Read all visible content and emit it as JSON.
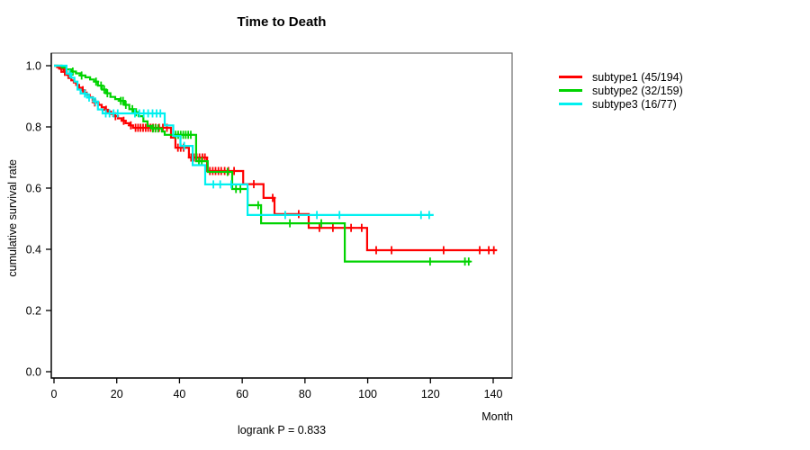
{
  "title": "Time to Death",
  "annotation": "logrank P = 0.833",
  "x_axis": {
    "label": "Month"
  },
  "y_axis": {
    "label": "cumulative survival rate"
  },
  "chart_data": {
    "type": "line",
    "subtype": "kaplan-meier-step",
    "title": "Time to Death",
    "xlabel": "Month",
    "ylabel": "cumulative survival rate",
    "xlim": [
      0,
      146
    ],
    "ylim": [
      0.0,
      1.0
    ],
    "x_ticks": [
      0,
      20,
      40,
      60,
      80,
      100,
      120,
      140
    ],
    "y_ticks": [
      0.0,
      0.2,
      0.4,
      0.6,
      0.8,
      1.0
    ],
    "grid": false,
    "legend_position": "right-outside",
    "annotation": "logrank P = 0.833",
    "series": [
      {
        "name": "subtype1",
        "legend_label": "subtype1 (45/194)",
        "events": 45,
        "n": 194,
        "color": "#FF0000",
        "end_month": 141.2,
        "steps": [
          [
            0,
            1.0
          ],
          [
            1,
            0.995
          ],
          [
            2,
            0.99
          ],
          [
            3,
            0.98
          ],
          [
            4,
            0.97
          ],
          [
            4.6,
            0.96
          ],
          [
            5.5,
            0.952
          ],
          [
            6.3,
            0.945
          ],
          [
            7.1,
            0.937
          ],
          [
            8,
            0.928
          ],
          [
            8.8,
            0.92
          ],
          [
            9.6,
            0.912
          ],
          [
            10.4,
            0.905
          ],
          [
            11.4,
            0.897
          ],
          [
            12.3,
            0.888
          ],
          [
            13.2,
            0.88
          ],
          [
            14.2,
            0.872
          ],
          [
            15.2,
            0.864
          ],
          [
            16.2,
            0.856
          ],
          [
            17.2,
            0.85
          ],
          [
            18.2,
            0.842
          ],
          [
            19.2,
            0.835
          ],
          [
            20.4,
            0.828
          ],
          [
            21.6,
            0.82
          ],
          [
            22.8,
            0.812
          ],
          [
            24,
            0.805
          ],
          [
            25.2,
            0.797
          ],
          [
            37.3,
            0.765
          ],
          [
            38.7,
            0.732
          ],
          [
            43,
            0.7
          ],
          [
            48.8,
            0.656
          ],
          [
            60.3,
            0.613
          ],
          [
            66.8,
            0.568
          ],
          [
            70.3,
            0.515
          ],
          [
            81.2,
            0.47
          ],
          [
            99.8,
            0.397
          ]
        ],
        "censor_marks": [
          [
            2.3,
            0.99
          ],
          [
            3.4,
            0.98
          ],
          [
            9.2,
            0.92
          ],
          [
            13,
            0.88
          ],
          [
            16.6,
            0.856
          ],
          [
            19.6,
            0.835
          ],
          [
            22.2,
            0.82
          ],
          [
            24.5,
            0.805
          ],
          [
            26,
            0.797
          ],
          [
            26.8,
            0.797
          ],
          [
            27.6,
            0.797
          ],
          [
            28.4,
            0.797
          ],
          [
            29.2,
            0.797
          ],
          [
            30,
            0.797
          ],
          [
            30.8,
            0.797
          ],
          [
            31.6,
            0.797
          ],
          [
            32.4,
            0.797
          ],
          [
            33.5,
            0.797
          ],
          [
            34.7,
            0.797
          ],
          [
            36,
            0.797
          ],
          [
            39.5,
            0.732
          ],
          [
            40.4,
            0.732
          ],
          [
            41.3,
            0.732
          ],
          [
            43.7,
            0.7
          ],
          [
            44.6,
            0.7
          ],
          [
            45.5,
            0.7
          ],
          [
            46.4,
            0.7
          ],
          [
            47.3,
            0.7
          ],
          [
            48.1,
            0.7
          ],
          [
            49.7,
            0.656
          ],
          [
            50.6,
            0.656
          ],
          [
            51.5,
            0.656
          ],
          [
            52.4,
            0.656
          ],
          [
            53.3,
            0.656
          ],
          [
            54.4,
            0.656
          ],
          [
            55.6,
            0.656
          ],
          [
            57.4,
            0.656
          ],
          [
            63.7,
            0.613
          ],
          [
            69.7,
            0.568
          ],
          [
            78,
            0.515
          ],
          [
            84.6,
            0.47
          ],
          [
            88.9,
            0.47
          ],
          [
            94.7,
            0.47
          ],
          [
            98.1,
            0.47
          ],
          [
            102.7,
            0.397
          ],
          [
            107.6,
            0.397
          ],
          [
            124.2,
            0.397
          ],
          [
            135.7,
            0.397
          ],
          [
            138.6,
            0.397
          ],
          [
            140.2,
            0.397
          ]
        ]
      },
      {
        "name": "subtype2",
        "legend_label": "subtype2 (32/159)",
        "events": 32,
        "n": 159,
        "color": "#00D300",
        "end_month": 132.8,
        "steps": [
          [
            0,
            1.0
          ],
          [
            2.5,
            0.994
          ],
          [
            4,
            0.988
          ],
          [
            5.5,
            0.981
          ],
          [
            7,
            0.975
          ],
          [
            8.5,
            0.968
          ],
          [
            10,
            0.962
          ],
          [
            11.5,
            0.955
          ],
          [
            12.8,
            0.948
          ],
          [
            14,
            0.935
          ],
          [
            15.3,
            0.922
          ],
          [
            16.6,
            0.91
          ],
          [
            18,
            0.898
          ],
          [
            19.5,
            0.891
          ],
          [
            21,
            0.885
          ],
          [
            22.5,
            0.872
          ],
          [
            24,
            0.858
          ],
          [
            25.5,
            0.848
          ],
          [
            27,
            0.835
          ],
          [
            28.5,
            0.818
          ],
          [
            29.8,
            0.803
          ],
          [
            31,
            0.795
          ],
          [
            34.4,
            0.785
          ],
          [
            35.3,
            0.774
          ],
          [
            45.3,
            0.688
          ],
          [
            49,
            0.653
          ],
          [
            56.8,
            0.597
          ],
          [
            61.7,
            0.544
          ],
          [
            66,
            0.485
          ],
          [
            92.7,
            0.36
          ]
        ],
        "censor_marks": [
          [
            6,
            0.981
          ],
          [
            8.8,
            0.968
          ],
          [
            13.4,
            0.948
          ],
          [
            15,
            0.935
          ],
          [
            16,
            0.922
          ],
          [
            17,
            0.91
          ],
          [
            21.3,
            0.885
          ],
          [
            22,
            0.885
          ],
          [
            22.9,
            0.872
          ],
          [
            25,
            0.858
          ],
          [
            26.2,
            0.848
          ],
          [
            31.5,
            0.795
          ],
          [
            32.3,
            0.795
          ],
          [
            33.2,
            0.795
          ],
          [
            38.8,
            0.774
          ],
          [
            39.6,
            0.774
          ],
          [
            40.4,
            0.774
          ],
          [
            41.2,
            0.774
          ],
          [
            42,
            0.774
          ],
          [
            42.8,
            0.774
          ],
          [
            43.6,
            0.774
          ],
          [
            46.2,
            0.688
          ],
          [
            47.1,
            0.688
          ],
          [
            55.3,
            0.653
          ],
          [
            58,
            0.597
          ],
          [
            59.4,
            0.597
          ],
          [
            65.1,
            0.544
          ],
          [
            75.2,
            0.485
          ],
          [
            85.2,
            0.485
          ],
          [
            119.9,
            0.36
          ],
          [
            131,
            0.36
          ],
          [
            132.2,
            0.36
          ]
        ]
      },
      {
        "name": "subtype3",
        "legend_label": "subtype3 (16/77)",
        "events": 16,
        "n": 77,
        "color": "#00F0F0",
        "end_month": 121,
        "steps": [
          [
            0,
            1.0
          ],
          [
            4,
            0.974
          ],
          [
            5.5,
            0.961
          ],
          [
            6.5,
            0.948
          ],
          [
            7.5,
            0.922
          ],
          [
            8.5,
            0.909
          ],
          [
            10.5,
            0.896
          ],
          [
            12.5,
            0.883
          ],
          [
            14,
            0.857
          ],
          [
            15.5,
            0.844
          ],
          [
            35.3,
            0.805
          ],
          [
            38,
            0.77
          ],
          [
            40.3,
            0.738
          ],
          [
            44.2,
            0.675
          ],
          [
            48.2,
            0.612
          ],
          [
            61.7,
            0.512
          ]
        ],
        "censor_marks": [
          [
            5,
            0.974
          ],
          [
            9.8,
            0.909
          ],
          [
            11.2,
            0.896
          ],
          [
            13.2,
            0.883
          ],
          [
            16.5,
            0.844
          ],
          [
            17.7,
            0.844
          ],
          [
            19,
            0.844
          ],
          [
            20.3,
            0.844
          ],
          [
            25.8,
            0.844
          ],
          [
            27.2,
            0.844
          ],
          [
            28.6,
            0.844
          ],
          [
            30,
            0.844
          ],
          [
            31.4,
            0.844
          ],
          [
            32.7,
            0.844
          ],
          [
            33.9,
            0.844
          ],
          [
            41.5,
            0.738
          ],
          [
            50.8,
            0.612
          ],
          [
            53,
            0.612
          ],
          [
            56.5,
            0.612
          ],
          [
            73.7,
            0.512
          ],
          [
            83.8,
            0.512
          ],
          [
            91,
            0.512
          ],
          [
            117,
            0.512
          ],
          [
            119.6,
            0.512
          ]
        ]
      }
    ]
  }
}
